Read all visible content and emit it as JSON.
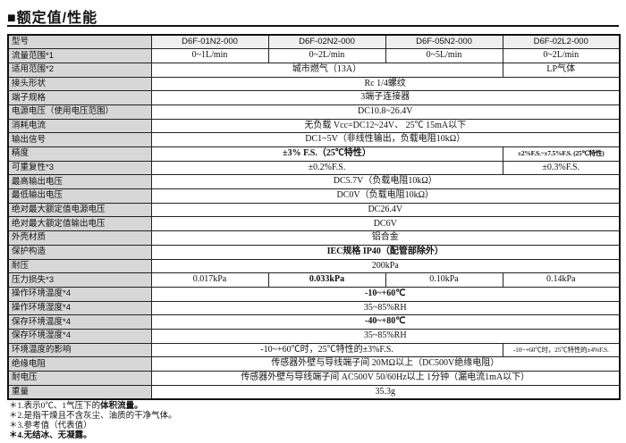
{
  "title": "■额定值/性能",
  "colors": {
    "label_bg": "#d7d7d7",
    "header_bg": "#efefef",
    "border": "#222222",
    "text": "#111111"
  },
  "table": {
    "header": {
      "label": "型号",
      "models": [
        "D6F-01N2-000",
        "D6F-02N2-000",
        "D6F-05N2-000",
        "D6F-02L2-000"
      ]
    },
    "rows": [
      {
        "label": "流量范围*1",
        "cells": [
          {
            "text": "0~1L/min",
            "span": 1
          },
          {
            "text": "0~2L/min",
            "span": 1
          },
          {
            "text": "0~5L/min",
            "span": 1
          },
          {
            "text": "0~2L/min",
            "span": 1
          }
        ]
      },
      {
        "label": "适用范围*2",
        "cells": [
          {
            "text": "城市燃气（13A）",
            "span": 3
          },
          {
            "text": "LP气体",
            "span": 1
          }
        ]
      },
      {
        "label": "接头形状",
        "cells": [
          {
            "text": "Rc 1/4螺纹",
            "span": 4
          }
        ]
      },
      {
        "label": "端子规格",
        "cells": [
          {
            "text": "3端子连接器",
            "span": 4
          }
        ]
      },
      {
        "label": "电源电压（使用电压范围）",
        "cells": [
          {
            "text": "DC10.8~26.4V",
            "span": 4
          }
        ]
      },
      {
        "label": "消耗电流",
        "cells": [
          {
            "text": "无负载 Vcc=DC12~24V、 25℃ 15mA以下",
            "span": 4
          }
        ]
      },
      {
        "label": "输出信号",
        "cells": [
          {
            "text": "DC1~5V（非线性输出，负载电阻10kΩ）",
            "span": 4
          }
        ]
      },
      {
        "label": "精度",
        "cells": [
          {
            "text": "±3% F.S.（25℃特性）",
            "span": 3,
            "bold": true
          },
          {
            "text": "±2%F.S.~±7.5%F.S. (25℃特性)",
            "span": 1,
            "bold": true,
            "small": true
          }
        ]
      },
      {
        "label": "可重复性*3",
        "cells": [
          {
            "text": "±0.2%F.S.",
            "span": 3
          },
          {
            "text": "±0.3%F.S.",
            "span": 1
          }
        ]
      },
      {
        "label": "最高输出电压",
        "cells": [
          {
            "text": "DC5.7V（负载电阻10kΩ）",
            "span": 4
          }
        ]
      },
      {
        "label": "最低输出电压",
        "cells": [
          {
            "text": "DC0V（负载电阻10kΩ）",
            "span": 4
          }
        ]
      },
      {
        "label": "绝对最大额定值电源电压",
        "cells": [
          {
            "text": "DC26.4V",
            "span": 4
          }
        ]
      },
      {
        "label": "绝对最大额定值输出电压",
        "cells": [
          {
            "text": "DC6V",
            "span": 4
          }
        ]
      },
      {
        "label": "外壳材质",
        "cells": [
          {
            "text": "铝合金",
            "span": 4
          }
        ]
      },
      {
        "label": "保护构造",
        "cells": [
          {
            "text": "IEC规格 IP40（配管部除外）",
            "span": 4,
            "bold": true
          }
        ]
      },
      {
        "label": "耐压",
        "cells": [
          {
            "text": "200kPa",
            "span": 4
          }
        ]
      },
      {
        "label": "压力损失*3",
        "cells": [
          {
            "text": "0.017kPa",
            "span": 1
          },
          {
            "text": "0.033kPa",
            "span": 1,
            "bold": true
          },
          {
            "text": "0.10kPa",
            "span": 1
          },
          {
            "text": "0.14kPa",
            "span": 1
          }
        ]
      },
      {
        "label": "操作环境温度*4",
        "cells": [
          {
            "text": "-10~+60℃",
            "span": 4,
            "bold": true
          }
        ]
      },
      {
        "label": "操作环境湿度*4",
        "cells": [
          {
            "text": "35~85%RH",
            "span": 4
          }
        ]
      },
      {
        "label": "保存环境温度*4",
        "cells": [
          {
            "text": "-40~+80℃",
            "span": 4,
            "bold": true
          }
        ]
      },
      {
        "label": "保存环境湿度*4",
        "cells": [
          {
            "text": "35~85%RH",
            "span": 4
          }
        ]
      },
      {
        "label": "环境温度的影响",
        "cells": [
          {
            "text": "-10~+60℃时，25℃特性的±3%F.S.",
            "span": 3
          },
          {
            "text": "-10~+60℃时，25℃特性的±4%F.S.",
            "span": 1,
            "small": true
          }
        ]
      },
      {
        "label": "绝缘电阻",
        "cells": [
          {
            "text": "传感器外壁与导线端子间 20MΩ以上（DC500V绝缘电阻）",
            "span": 4
          }
        ]
      },
      {
        "label": "耐电压",
        "cells": [
          {
            "text": "传感器外壁与导线端子间 AC500V 50/60Hz以上 1分钟（漏电流1mA以下）",
            "span": 4
          }
        ]
      },
      {
        "label": "重量",
        "cells": [
          {
            "text": "35.3g",
            "span": 4
          }
        ]
      }
    ]
  },
  "notes": [
    {
      "prefix": "＊1.表示0℃、1气压下的",
      "bold": "体积流量。"
    },
    {
      "prefix": "＊2.是指干燥且不含灰尘、油质的干净气体。",
      "bold": ""
    },
    {
      "prefix": "＊3.参考值（代表值）",
      "bold": ""
    },
    {
      "prefix": "",
      "bold": "＊4.无结冰、无凝露。"
    }
  ]
}
